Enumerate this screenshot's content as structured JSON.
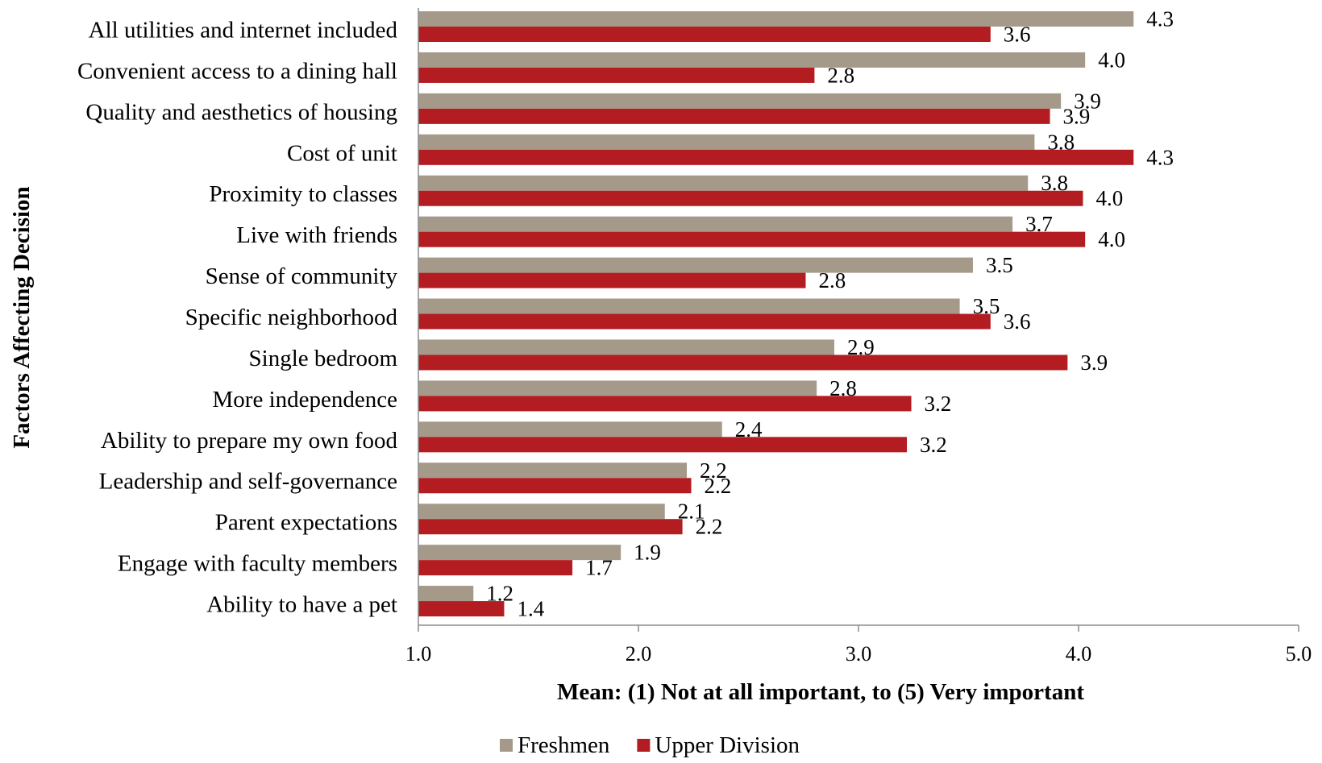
{
  "chart_data": {
    "type": "bar",
    "orientation": "horizontal",
    "categories": [
      "All utilities and internet included",
      "Convenient access to a dining hall",
      "Quality and aesthetics of housing",
      "Cost of unit",
      "Proximity to classes",
      "Live with friends",
      "Sense of community",
      "Specific neighborhood",
      "Single bedroom",
      "More independence",
      "Ability to prepare my own food",
      "Leadership and self-governance",
      "Parent expectations",
      "Engage with faculty members",
      "Ability to have a pet"
    ],
    "series": [
      {
        "name": "Freshmen",
        "color": "#a59a8a",
        "values": [
          4.25,
          4.03,
          3.92,
          3.8,
          3.77,
          3.7,
          3.52,
          3.46,
          2.89,
          2.81,
          2.38,
          2.22,
          2.12,
          1.92,
          1.25
        ],
        "labels": [
          "4.3",
          "4.0",
          "3.9",
          "3.8",
          "3.8",
          "3.7",
          "3.5",
          "3.5",
          "2.9",
          "2.8",
          "2.4",
          "2.2",
          "2.1",
          "1.9",
          "1.2"
        ]
      },
      {
        "name": "Upper Division",
        "color": "#b31c21",
        "values": [
          3.6,
          2.8,
          3.87,
          4.25,
          4.02,
          4.03,
          2.76,
          3.6,
          3.95,
          3.24,
          3.22,
          2.24,
          2.2,
          1.7,
          1.39
        ],
        "labels": [
          "3.6",
          "2.8",
          "3.9",
          "4.3",
          "4.0",
          "4.0",
          "2.8",
          "3.6",
          "3.9",
          "3.2",
          "3.2",
          "2.2",
          "2.2",
          "1.7",
          "1.4"
        ]
      }
    ],
    "xlim": [
      1.0,
      5.0
    ],
    "xticks": [
      "1.0",
      "2.0",
      "3.0",
      "4.0",
      "5.0"
    ],
    "xlabel": "Mean: (1) Not at all important, to (5) Very important",
    "ylabel": "Factors Affecting Decision",
    "legend_position": "bottom",
    "grid": false
  }
}
